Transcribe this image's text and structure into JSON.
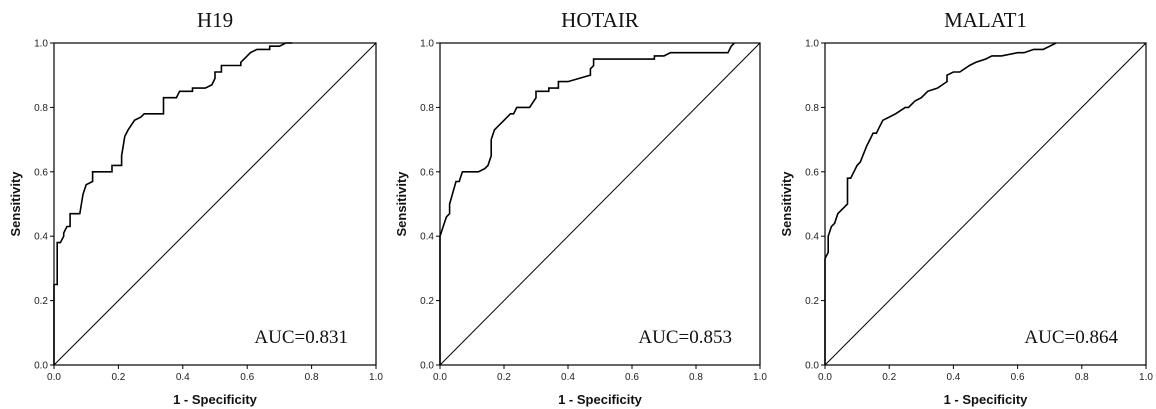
{
  "chart_data": [
    {
      "type": "line",
      "title": "H19",
      "xlabel": "1 - Specificity",
      "ylabel": "Sensitivity",
      "xlim": [
        0,
        1
      ],
      "ylim": [
        0,
        1
      ],
      "xticks": [
        "0.0",
        "0.2",
        "0.4",
        "0.6",
        "0.8",
        "1.0"
      ],
      "yticks": [
        "0.0",
        "0.2",
        "0.4",
        "0.6",
        "0.8",
        "1.0"
      ],
      "annotation": "AUC=0.831",
      "reference_line": [
        [
          0,
          0
        ],
        [
          1,
          1
        ]
      ],
      "series": [
        {
          "x": [
            0,
            0,
            0.01,
            0.01,
            0.02,
            0.03,
            0.03,
            0.04,
            0.05,
            0.05,
            0.08,
            0.09,
            0.1,
            0.12,
            0.12,
            0.13,
            0.18,
            0.18,
            0.21,
            0.21,
            0.22,
            0.23,
            0.25,
            0.27,
            0.28,
            0.34,
            0.34,
            0.38,
            0.39,
            0.43,
            0.43,
            0.47,
            0.49,
            0.5,
            0.5,
            0.52,
            0.52,
            0.58,
            0.58,
            0.6,
            0.61,
            0.63,
            0.67,
            0.67,
            0.7,
            0.72,
            0.74
          ],
          "y": [
            0,
            0.25,
            0.25,
            0.38,
            0.38,
            0.4,
            0.41,
            0.43,
            0.43,
            0.47,
            0.47,
            0.53,
            0.56,
            0.57,
            0.6,
            0.6,
            0.6,
            0.62,
            0.62,
            0.65,
            0.71,
            0.73,
            0.76,
            0.77,
            0.78,
            0.78,
            0.83,
            0.83,
            0.85,
            0.85,
            0.86,
            0.86,
            0.87,
            0.89,
            0.91,
            0.91,
            0.93,
            0.93,
            0.94,
            0.96,
            0.97,
            0.98,
            0.98,
            0.99,
            0.99,
            1.0,
            1.0
          ]
        }
      ]
    },
    {
      "type": "line",
      "title": "HOTAIR",
      "xlabel": "1 - Specificity",
      "ylabel": "Sensitivity",
      "xlim": [
        0,
        1
      ],
      "ylim": [
        0,
        1
      ],
      "xticks": [
        "0.0",
        "0.2",
        "0.4",
        "0.6",
        "0.8",
        "1.0"
      ],
      "yticks": [
        "0.0",
        "0.2",
        "0.4",
        "0.6",
        "0.8",
        "1.0"
      ],
      "annotation": "AUC=0.853",
      "reference_line": [
        [
          0,
          0
        ],
        [
          1,
          1
        ]
      ],
      "series": [
        {
          "x": [
            0,
            0,
            0.01,
            0.02,
            0.03,
            0.03,
            0.05,
            0.06,
            0.07,
            0.09,
            0.1,
            0.12,
            0.14,
            0.15,
            0.16,
            0.16,
            0.17,
            0.18,
            0.2,
            0.22,
            0.23,
            0.24,
            0.26,
            0.28,
            0.3,
            0.3,
            0.34,
            0.34,
            0.37,
            0.37,
            0.4,
            0.4,
            0.47,
            0.47,
            0.48,
            0.48,
            0.67,
            0.67,
            0.7,
            0.72,
            0.9,
            0.91,
            0.92
          ],
          "y": [
            0,
            0.4,
            0.43,
            0.46,
            0.47,
            0.5,
            0.57,
            0.57,
            0.6,
            0.6,
            0.6,
            0.6,
            0.61,
            0.62,
            0.65,
            0.7,
            0.73,
            0.74,
            0.76,
            0.78,
            0.78,
            0.8,
            0.8,
            0.8,
            0.83,
            0.85,
            0.85,
            0.86,
            0.86,
            0.88,
            0.88,
            0.88,
            0.9,
            0.92,
            0.93,
            0.95,
            0.95,
            0.96,
            0.96,
            0.97,
            0.97,
            0.99,
            1.0
          ]
        }
      ]
    },
    {
      "type": "line",
      "title": "MALAT1",
      "xlabel": "1 - Specificity",
      "ylabel": "Sensitivity",
      "xlim": [
        0,
        1
      ],
      "ylim": [
        0,
        1
      ],
      "xticks": [
        "0.0",
        "0.2",
        "0.4",
        "0.6",
        "0.8",
        "1.0"
      ],
      "yticks": [
        "0.0",
        "0.2",
        "0.4",
        "0.6",
        "0.8",
        "1.0"
      ],
      "annotation": "AUC=0.864",
      "reference_line": [
        [
          0,
          0
        ],
        [
          1,
          1
        ]
      ],
      "series": [
        {
          "x": [
            0,
            0,
            0.01,
            0.01,
            0.02,
            0.03,
            0.04,
            0.05,
            0.06,
            0.07,
            0.07,
            0.08,
            0.09,
            0.1,
            0.11,
            0.13,
            0.14,
            0.15,
            0.16,
            0.17,
            0.18,
            0.2,
            0.22,
            0.25,
            0.26,
            0.28,
            0.3,
            0.32,
            0.35,
            0.38,
            0.38,
            0.4,
            0.42,
            0.45,
            0.47,
            0.5,
            0.52,
            0.55,
            0.6,
            0.62,
            0.65,
            0.68,
            0.7,
            0.72
          ],
          "y": [
            0,
            0.33,
            0.35,
            0.4,
            0.43,
            0.44,
            0.47,
            0.48,
            0.49,
            0.5,
            0.58,
            0.58,
            0.6,
            0.62,
            0.63,
            0.68,
            0.7,
            0.72,
            0.72,
            0.74,
            0.76,
            0.77,
            0.78,
            0.8,
            0.8,
            0.82,
            0.83,
            0.85,
            0.86,
            0.88,
            0.9,
            0.91,
            0.91,
            0.93,
            0.94,
            0.95,
            0.96,
            0.96,
            0.97,
            0.97,
            0.98,
            0.98,
            0.99,
            1.0
          ]
        }
      ]
    }
  ]
}
